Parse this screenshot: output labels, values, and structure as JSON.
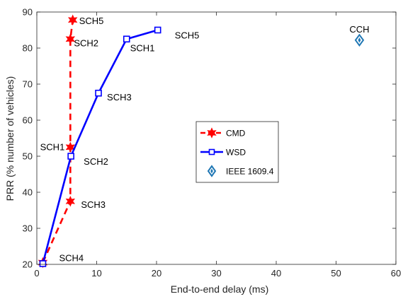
{
  "chart_data": {
    "type": "line",
    "xlabel": "End-to-end delay (ms)",
    "ylabel": "PRR (% number of vehicles)",
    "xlim": [
      0,
      60
    ],
    "ylim": [
      20,
      90
    ],
    "xticks": [
      0,
      10,
      20,
      30,
      40,
      50,
      60
    ],
    "yticks": [
      20,
      30,
      40,
      50,
      60,
      70,
      80,
      90
    ],
    "grid": false,
    "legend_position": "center",
    "series": [
      {
        "name": "CMD",
        "style": "dashed-line-hexagram-markers",
        "color": "#ff0000",
        "points": [
          {
            "x": 1.0,
            "y": 20.5,
            "label": "SCH4"
          },
          {
            "x": 5.6,
            "y": 37.5,
            "label": "SCH3"
          },
          {
            "x": 5.6,
            "y": 52.5,
            "label": "SCH1"
          },
          {
            "x": 5.6,
            "y": 82.5,
            "label": "SCH2"
          },
          {
            "x": 6.0,
            "y": 87.8,
            "label": "SCH5"
          }
        ]
      },
      {
        "name": "WSD",
        "style": "solid-line-square-markers",
        "color": "#0000ff",
        "points": [
          {
            "x": 1.0,
            "y": 20.2,
            "label": ""
          },
          {
            "x": 5.7,
            "y": 50.0,
            "label": "SCH2"
          },
          {
            "x": 10.3,
            "y": 67.5,
            "label": "SCH3"
          },
          {
            "x": 15.0,
            "y": 82.5,
            "label": "SCH1"
          },
          {
            "x": 20.2,
            "y": 85.0,
            "label": "SCH5"
          }
        ]
      },
      {
        "name": "IEEE 1609.4",
        "style": "diamond-marker",
        "color": "#1f77b4",
        "points": [
          {
            "x": 53.9,
            "y": 82.2,
            "label": "CCH"
          }
        ]
      }
    ]
  }
}
